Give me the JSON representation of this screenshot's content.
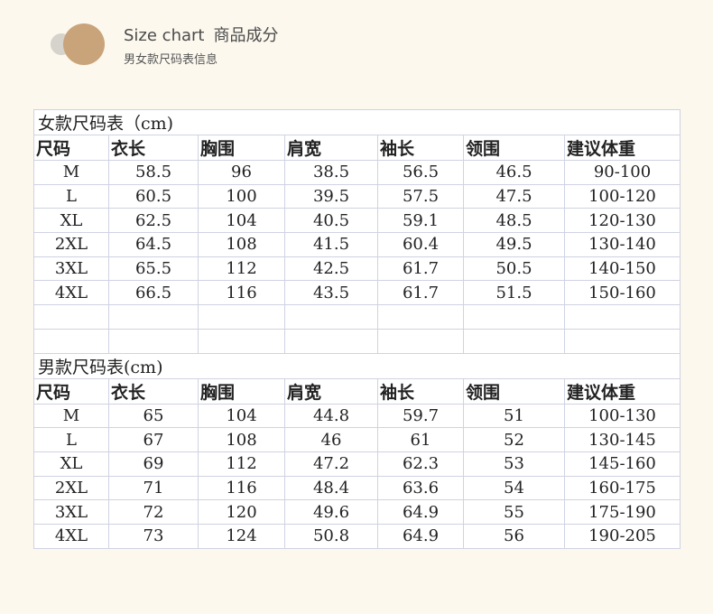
{
  "header": {
    "title_en": "Size chart",
    "title_cn": "商品成分",
    "subtitle": "男女款尺码表信息",
    "accent": "#c9a47a"
  },
  "women": {
    "caption": "女款尺码表（cm)",
    "columns": [
      "尺码",
      "衣长",
      "胸围",
      "肩宽",
      "袖长",
      "领围",
      "建议体重"
    ],
    "rows": [
      [
        "M",
        "58.5",
        "96",
        "38.5",
        "56.5",
        "46.5",
        "90-100"
      ],
      [
        "L",
        "60.5",
        "100",
        "39.5",
        "57.5",
        "47.5",
        "100-120"
      ],
      [
        "XL",
        "62.5",
        "104",
        "40.5",
        "59.1",
        "48.5",
        "120-130"
      ],
      [
        "2XL",
        "64.5",
        "108",
        "41.5",
        "60.4",
        "49.5",
        "130-140"
      ],
      [
        "3XL",
        "65.5",
        "112",
        "42.5",
        "61.7",
        "50.5",
        "140-150"
      ],
      [
        "4XL",
        "66.5",
        "116",
        "43.5",
        "61.7",
        "51.5",
        "150-160"
      ]
    ]
  },
  "men": {
    "caption": "男款尺码表(cm)",
    "columns": [
      "尺码",
      "衣长",
      "胸围",
      "肩宽",
      "袖长",
      "领围",
      "建议体重"
    ],
    "rows": [
      [
        "M",
        "65",
        "104",
        "44.8",
        "59.7",
        "51",
        "100-130"
      ],
      [
        "L",
        "67",
        "108",
        "46",
        "61",
        "52",
        "130-145"
      ],
      [
        "XL",
        "69",
        "112",
        "47.2",
        "62.3",
        "53",
        "145-160"
      ],
      [
        "2XL",
        "71",
        "116",
        "48.4",
        "63.6",
        "54",
        "160-175"
      ],
      [
        "3XL",
        "72",
        "120",
        "49.6",
        "64.9",
        "55",
        "175-190"
      ],
      [
        "4XL",
        "73",
        "124",
        "50.8",
        "64.9",
        "56",
        "190-205"
      ]
    ]
  }
}
